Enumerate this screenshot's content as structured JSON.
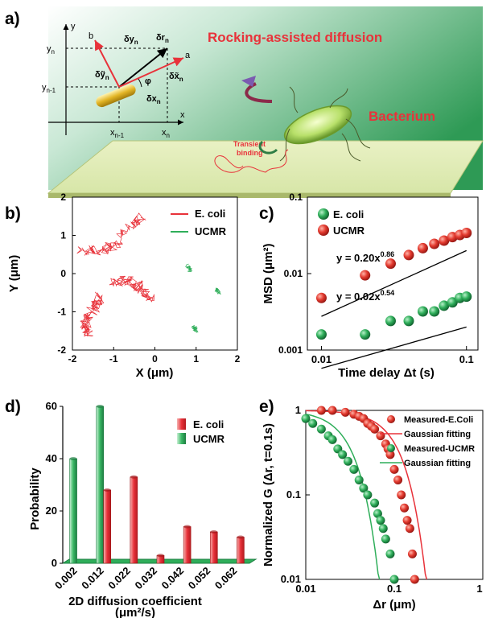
{
  "labels": {
    "a": "a)",
    "b": "b)",
    "c": "c)",
    "d": "d)",
    "e": "e)"
  },
  "colors": {
    "red": "#e8323a",
    "green": "#2fae5a",
    "red_dot": "#d92b26",
    "green_dot": "#2f9a4f"
  },
  "panel_a": {
    "title": "Rocking-assisted diffusion",
    "bacterium": "Bacterium",
    "binding1": "Transient",
    "binding2": "binding",
    "axis_x": "x",
    "axis_y": "y",
    "yn": "y",
    "yn_sub": "n",
    "yn1": "y",
    "yn1_sub": "n-1",
    "xn1": "x",
    "xn1_sub": "n-1",
    "xn": "x",
    "xn_sub": "n",
    "vec_a": "a",
    "vec_b": "b",
    "dyn": "δy",
    "dyn_sub": "n",
    "drn": "δr",
    "drn_sub": "n",
    "dyt": "δỹ",
    "dyt_sub": "n",
    "dxt": "δx̃",
    "dxt_sub": "n",
    "phi": "φ",
    "dxn": "δx",
    "dxn_sub": "n"
  },
  "panel_b": {
    "ylabel": "Y (μm)",
    "xlabel": "X (μm)",
    "xticks": [
      "-2",
      "-1",
      "0",
      "1",
      "2"
    ],
    "yticks": [
      "2",
      "1",
      "0",
      "-1",
      "-2"
    ],
    "legend": [
      "E. coli",
      "UCMR"
    ]
  },
  "panel_c": {
    "ylabel": "MSD (μm²)",
    "xlabel": "Time delay Δt (s)",
    "xticks": [
      "0.01",
      "0.1"
    ],
    "yticks": [
      "0.1",
      "0.01",
      "0.001"
    ],
    "legend": [
      "E. coli",
      "UCMR"
    ],
    "fit_ecoli": "y = 0.20x",
    "fit_ecoli_exp": "0.86",
    "fit_ucmr": "y = 0.02x",
    "fit_ucmr_exp": "0.54"
  },
  "panel_d": {
    "ylabel": "Probability",
    "xlabel": "2D diffusion coefficient",
    "xunit": "(μm²/s)",
    "yticks": [
      "60",
      "40",
      "20",
      "0"
    ],
    "categories": [
      "0.002",
      "0.012",
      "0.022",
      "0.032",
      "0.042",
      "0.052",
      "0.062"
    ],
    "legend": [
      "E. coli",
      "UCMR"
    ]
  },
  "panel_e": {
    "ylabel": "Normalized G (Δr, t=0.1s)",
    "xlabel": "Δr (μm)",
    "xticks": [
      "0.01",
      "0.1",
      "1"
    ],
    "yticks": [
      "1",
      "0.1",
      "0.01"
    ],
    "legend": [
      "Measured-E.Coli",
      "Gaussian fitting",
      "Measured-UCMR",
      "Gaussian fitting"
    ]
  },
  "chart_data": [
    {
      "type": "scatter",
      "xlabel": "X (μm)",
      "ylabel": "Y (μm)",
      "xlim": [
        -2,
        2
      ],
      "ylim": [
        -2,
        2
      ],
      "series": [
        {
          "name": "E. coli",
          "tracks": [
            [
              [
                -1.8,
                0.6
              ],
              [
                -1.3,
                0.6
              ],
              [
                -1.0,
                0.7
              ],
              [
                -0.6,
                1.2
              ],
              [
                -0.3,
                1.5
              ]
            ],
            [
              [
                -1.0,
                -0.2
              ],
              [
                -0.6,
                -0.2
              ],
              [
                -0.3,
                -0.4
              ],
              [
                -0.1,
                -0.7
              ]
            ],
            [
              [
                -1.3,
                -0.6
              ],
              [
                -1.5,
                -0.9
              ],
              [
                -1.7,
                -1.3
              ],
              [
                -1.6,
                -1.6
              ]
            ]
          ]
        },
        {
          "name": "UCMR",
          "tracks": [
            [
              [
                0.8,
                0.2
              ],
              [
                0.85,
                0.1
              ]
            ],
            [
              [
                1.5,
                -0.4
              ],
              [
                1.55,
                -0.5
              ]
            ],
            [
              [
                0.95,
                -1.4
              ],
              [
                1.0,
                -1.5
              ]
            ]
          ]
        }
      ]
    },
    {
      "type": "scatter",
      "xlabel": "Time delay Δt (s)",
      "ylabel": "MSD (μm²)",
      "xscale": "log",
      "yscale": "log",
      "xlim": [
        0.01,
        0.1
      ],
      "ylim": [
        0.001,
        0.1
      ],
      "series": [
        {
          "name": "E. coli",
          "x": [
            0.01,
            0.02,
            0.03,
            0.04,
            0.05,
            0.06,
            0.07,
            0.08,
            0.09,
            0.1
          ],
          "y": [
            0.0048,
            0.0095,
            0.0135,
            0.0175,
            0.0215,
            0.0245,
            0.027,
            0.03,
            0.032,
            0.034
          ]
        },
        {
          "name": "UCMR",
          "x": [
            0.01,
            0.02,
            0.03,
            0.04,
            0.05,
            0.06,
            0.07,
            0.08,
            0.09,
            0.1
          ],
          "y": [
            0.0016,
            0.0016,
            0.0024,
            0.0024,
            0.0032,
            0.0032,
            0.0038,
            0.0042,
            0.0048,
            0.005
          ]
        }
      ],
      "fits": [
        {
          "series": "E. coli",
          "a": 0.2,
          "b": 0.86
        },
        {
          "series": "UCMR",
          "a": 0.02,
          "b": 0.54
        }
      ]
    },
    {
      "type": "bar",
      "xlabel": "2D diffusion coefficient (μm²/s)",
      "ylabel": "Probability",
      "ylim": [
        0,
        60
      ],
      "categories": [
        "0.002",
        "0.012",
        "0.022",
        "0.032",
        "0.042",
        "0.052",
        "0.062"
      ],
      "series": [
        {
          "name": "UCMR",
          "values": [
            40,
            60,
            0,
            0,
            0,
            0,
            0
          ]
        },
        {
          "name": "E. coli",
          "values": [
            0,
            28,
            33,
            3,
            14,
            12,
            10
          ]
        }
      ]
    },
    {
      "type": "scatter",
      "xlabel": "Δr (μm)",
      "ylabel": "Normalized G (Δr, t=0.1s)",
      "xscale": "log",
      "yscale": "log",
      "xlim": [
        0.01,
        1
      ],
      "ylim": [
        0.01,
        1
      ],
      "series": [
        {
          "name": "Measured-E.Coli",
          "x": [
            0.015,
            0.02,
            0.028,
            0.035,
            0.04,
            0.045,
            0.05,
            0.055,
            0.06,
            0.07,
            0.08,
            0.085,
            0.09,
            0.1,
            0.11,
            0.12,
            0.13,
            0.14,
            0.15,
            0.16,
            0.17
          ],
          "y": [
            1.0,
            1.0,
            0.95,
            0.9,
            0.85,
            0.8,
            0.7,
            0.65,
            0.6,
            0.5,
            0.4,
            0.35,
            0.3,
            0.2,
            0.15,
            0.1,
            0.07,
            0.05,
            0.04,
            0.02,
            0.01
          ]
        },
        {
          "name": "Measured-UCMR",
          "x": [
            0.01,
            0.012,
            0.015,
            0.018,
            0.02,
            0.023,
            0.026,
            0.03,
            0.035,
            0.04,
            0.045,
            0.05,
            0.06,
            0.065,
            0.07,
            0.075,
            0.08,
            0.09,
            0.1
          ],
          "y": [
            0.8,
            0.7,
            0.6,
            0.5,
            0.45,
            0.35,
            0.3,
            0.25,
            0.2,
            0.15,
            0.12,
            0.1,
            0.08,
            0.06,
            0.05,
            0.04,
            0.03,
            0.02,
            0.01
          ]
        },
        {
          "name": "Gaussian fitting (E. coli)",
          "sigma": 0.075
        },
        {
          "name": "Gaussian fitting (UCMR)",
          "sigma": 0.022
        }
      ]
    }
  ]
}
